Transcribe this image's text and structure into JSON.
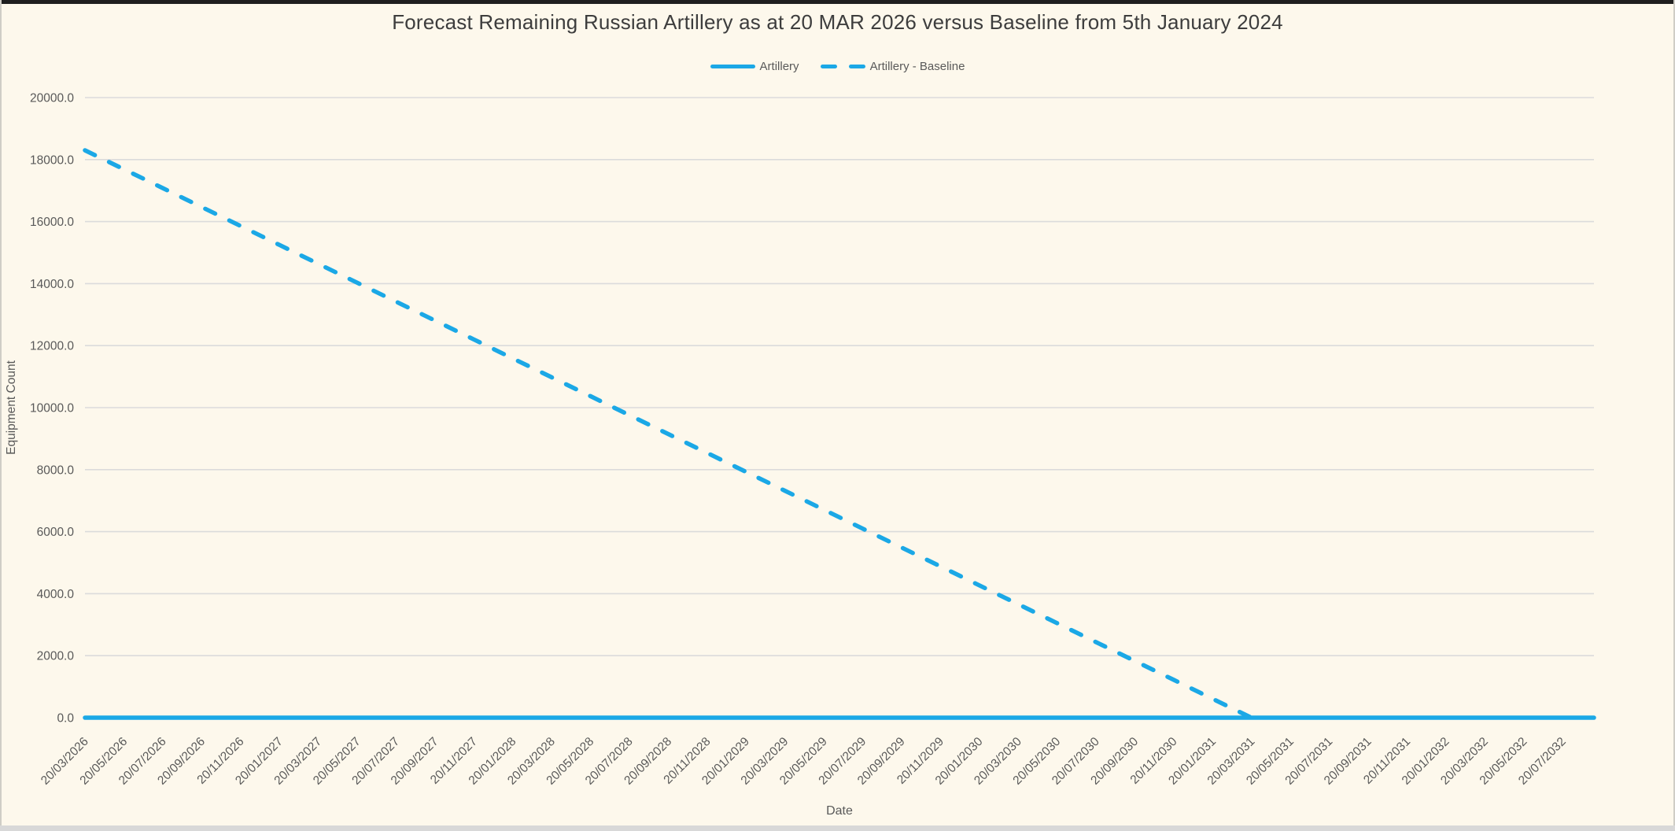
{
  "title": "Forecast Remaining Russian Artillery as at 20 MAR 2026 versus Baseline from 5th January 2024",
  "legend": [
    {
      "label": "Artillery",
      "style": "solid"
    },
    {
      "label": "Artillery - Baseline",
      "style": "dashed"
    }
  ],
  "colors": {
    "accent": "#1BA8E6",
    "background": "#FDF8EC",
    "grid": "#DBDBDB",
    "title_text": "#3D3D3D",
    "axis_text": "#595959",
    "top_edge": "#1F1F1F",
    "bottom_edge": "#D8D8D8"
  },
  "chart_data": {
    "type": "line",
    "title": "Forecast Remaining Russian Artillery as at 20 MAR 2026 versus Baseline from 5th January 2024",
    "xlabel": "Date",
    "ylabel": "Equipment Count",
    "ylim": [
      0,
      20000
    ],
    "ytick_step": 2000,
    "ytick_labels": [
      "0.0",
      "2000.0",
      "4000.0",
      "6000.0",
      "8000.0",
      "10000.0",
      "12000.0",
      "14000.0",
      "16000.0",
      "18000.0",
      "20000.0"
    ],
    "grid": "horizontal",
    "legend_position": "top-center",
    "x_tick_rotation": -45,
    "categories": [
      "20/03/2026",
      "20/05/2026",
      "20/07/2026",
      "20/09/2026",
      "20/11/2026",
      "20/01/2027",
      "20/03/2027",
      "20/05/2027",
      "20/07/2027",
      "20/09/2027",
      "20/11/2027",
      "20/01/2028",
      "20/03/2028",
      "20/05/2028",
      "20/07/2028",
      "20/09/2028",
      "20/11/2028",
      "20/01/2029",
      "20/03/2029",
      "20/05/2029",
      "20/07/2029",
      "20/09/2029",
      "20/11/2029",
      "20/01/2030",
      "20/03/2030",
      "20/05/2030",
      "20/07/2030",
      "20/09/2030",
      "20/11/2030",
      "20/01/2031",
      "20/03/2031",
      "20/05/2031",
      "20/07/2031",
      "20/09/2031",
      "20/11/2031",
      "20/01/2032",
      "20/03/2032",
      "20/05/2032",
      "20/07/2032"
    ],
    "series": [
      {
        "name": "Artillery",
        "style": "solid",
        "color": "#1BA8E6",
        "extend_to_plot_right": true,
        "values": [
          0,
          0,
          0,
          0,
          0,
          0,
          0,
          0,
          0,
          0,
          0,
          0,
          0,
          0,
          0,
          0,
          0,
          0,
          0,
          0,
          0,
          0,
          0,
          0,
          0,
          0,
          0,
          0,
          0,
          0,
          0,
          0,
          0,
          0,
          0,
          0,
          0,
          0,
          0
        ]
      },
      {
        "name": "Artillery - Baseline",
        "style": "dashed",
        "color": "#1BA8E6",
        "extend_to_plot_right": false,
        "values": [
          18300,
          17690,
          17080,
          16470,
          15860,
          15250,
          14640,
          14030,
          13420,
          12810,
          12200,
          11590,
          10980,
          10370,
          9760,
          9150,
          8540,
          7930,
          7320,
          6710,
          6100,
          5490,
          4880,
          4270,
          3660,
          3050,
          2440,
          1830,
          1220,
          610,
          0,
          null,
          null,
          null,
          null,
          null,
          null,
          null,
          null
        ]
      }
    ]
  }
}
